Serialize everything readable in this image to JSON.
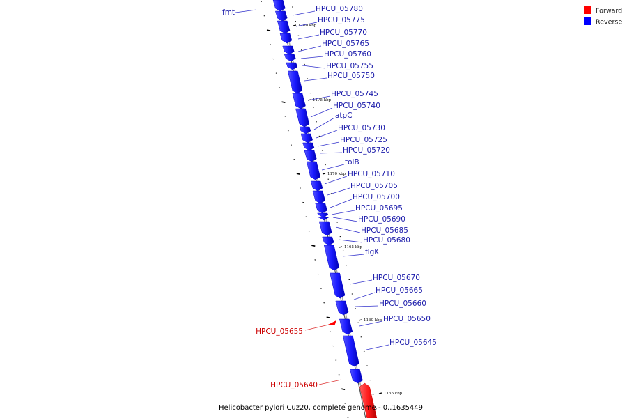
{
  "legend": [
    {
      "label": "Forward",
      "color": "#ff0000"
    },
    {
      "label": "Reverse",
      "color": "#0000ff"
    }
  ],
  "caption": "Helicobacter pylori Cuz20, complete genome - 0..1635449",
  "colors": {
    "forward": "#ff0000",
    "reverse": "#1a1aff",
    "forward_label": "#cc0000",
    "reverse_label": "#1a1aaa",
    "backbone": "#888888",
    "tick": "#000000"
  },
  "kbp_marks": [
    "1180 kbp",
    "1175 kbp",
    "1170 kbp",
    "1165 kbp",
    "1160 kbp",
    "1155 kbp"
  ],
  "genes": [
    {
      "name": "fmt",
      "strand": "reverse"
    },
    {
      "name": "HPCU_05780",
      "strand": "reverse"
    },
    {
      "name": "HPCU_05775",
      "strand": "reverse"
    },
    {
      "name": "HPCU_05770",
      "strand": "reverse"
    },
    {
      "name": "HPCU_05765",
      "strand": "reverse"
    },
    {
      "name": "HPCU_05760",
      "strand": "reverse"
    },
    {
      "name": "HPCU_05755",
      "strand": "reverse"
    },
    {
      "name": "HPCU_05750",
      "strand": "reverse"
    },
    {
      "name": "HPCU_05745",
      "strand": "reverse"
    },
    {
      "name": "HPCU_05740",
      "strand": "reverse"
    },
    {
      "name": "atpC",
      "strand": "reverse"
    },
    {
      "name": "HPCU_05730",
      "strand": "reverse"
    },
    {
      "name": "HPCU_05725",
      "strand": "reverse"
    },
    {
      "name": "HPCU_05720",
      "strand": "reverse"
    },
    {
      "name": "tolB",
      "strand": "reverse"
    },
    {
      "name": "HPCU_05710",
      "strand": "reverse"
    },
    {
      "name": "HPCU_05705",
      "strand": "reverse"
    },
    {
      "name": "HPCU_05700",
      "strand": "reverse"
    },
    {
      "name": "HPCU_05695",
      "strand": "reverse"
    },
    {
      "name": "HPCU_05690",
      "strand": "reverse"
    },
    {
      "name": "HPCU_05685",
      "strand": "reverse"
    },
    {
      "name": "HPCU_05680",
      "strand": "reverse"
    },
    {
      "name": "flgK",
      "strand": "reverse"
    },
    {
      "name": "HPCU_05670",
      "strand": "reverse"
    },
    {
      "name": "HPCU_05665",
      "strand": "reverse"
    },
    {
      "name": "HPCU_05660",
      "strand": "reverse"
    },
    {
      "name": "HPCU_05655",
      "strand": "forward"
    },
    {
      "name": "HPCU_05650",
      "strand": "reverse"
    },
    {
      "name": "HPCU_05645",
      "strand": "reverse"
    },
    {
      "name": "HPCU_05640",
      "strand": "forward"
    }
  ]
}
